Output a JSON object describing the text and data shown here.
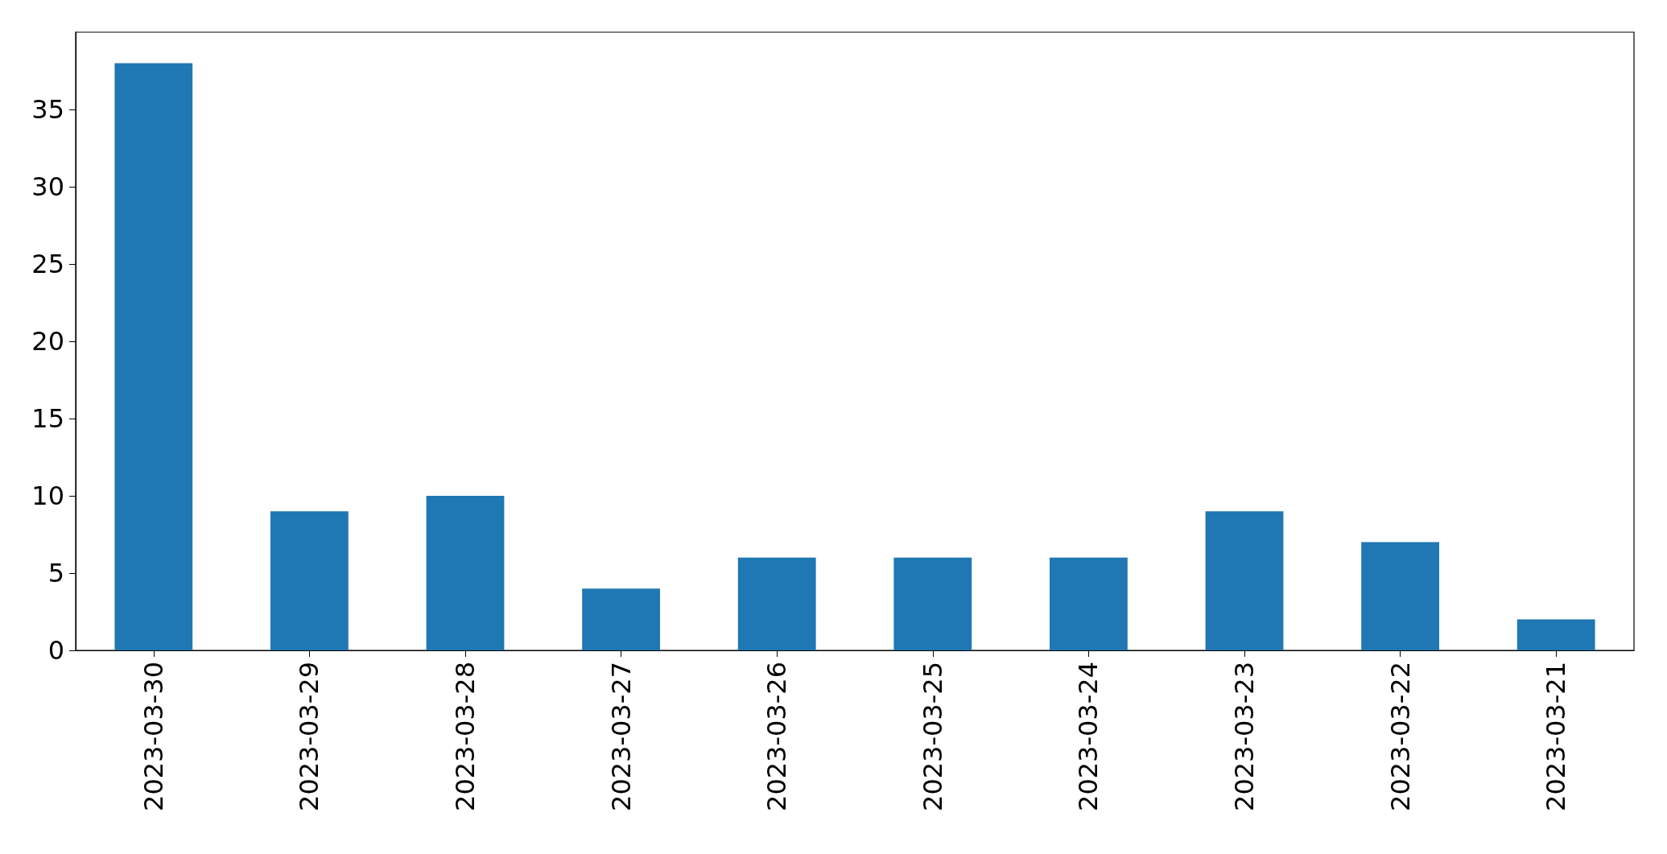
{
  "chart_data": {
    "type": "bar",
    "categories": [
      "2023-03-30",
      "2023-03-29",
      "2023-03-28",
      "2023-03-27",
      "2023-03-26",
      "2023-03-25",
      "2023-03-24",
      "2023-03-23",
      "2023-03-22",
      "2023-03-21"
    ],
    "values": [
      38,
      9,
      10,
      4,
      6,
      6,
      6,
      9,
      7,
      2
    ],
    "color": "#1f77b4",
    "ylim": [
      0,
      40
    ],
    "yticks": [
      0,
      5,
      10,
      15,
      20,
      25,
      30,
      35
    ]
  }
}
